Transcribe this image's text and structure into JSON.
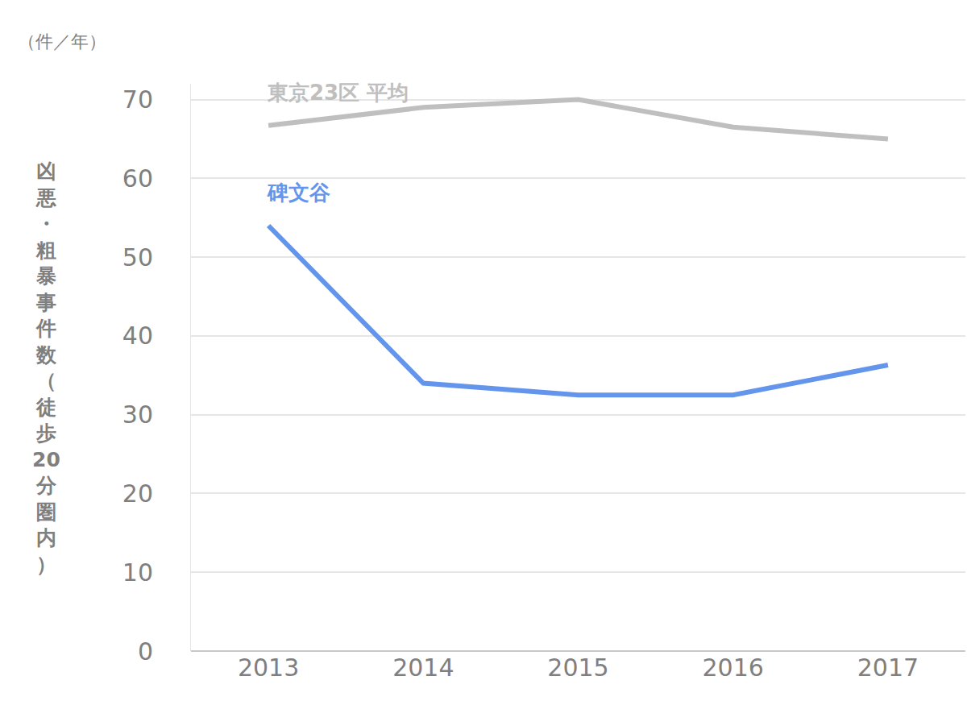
{
  "chart_data": {
    "type": "line",
    "ylabel": "凶悪・粗暴事件数（徒歩20分圏内）",
    "annotations": [
      "（件／年）"
    ],
    "categories": [
      "2013",
      "2014",
      "2015",
      "2016",
      "2017"
    ],
    "series": [
      {
        "name": "東京23区 平均",
        "color": "#bfbfbf",
        "values": [
          66.7,
          69.0,
          70.0,
          66.5,
          65.0
        ]
      },
      {
        "name": "碑文谷",
        "color": "#6495ed",
        "values": [
          54.0,
          34.0,
          32.5,
          32.5,
          36.3
        ]
      }
    ],
    "ylim": [
      0,
      72
    ],
    "yticks": [
      0,
      10,
      20,
      30,
      40,
      50,
      60,
      70
    ],
    "grid": true
  }
}
